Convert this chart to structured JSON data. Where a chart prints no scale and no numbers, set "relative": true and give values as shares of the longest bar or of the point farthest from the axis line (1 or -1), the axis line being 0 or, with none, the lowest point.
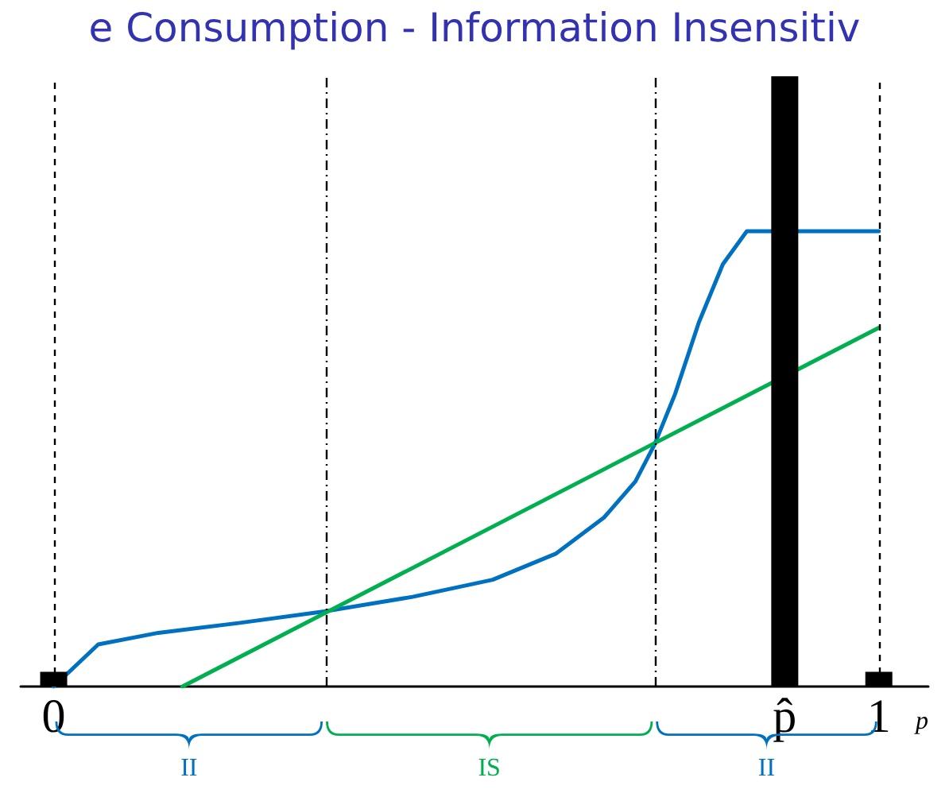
{
  "chart_data": {
    "type": "line",
    "title": "e Consumption - Information Insensitiv",
    "xlabel": "p",
    "relative": true,
    "xlim": [
      -0.04,
      1.06
    ],
    "xticks": [
      0,
      {
        "value": 0.886,
        "label": "p̂"
      },
      1
    ],
    "series": [
      {
        "color": "#0070c0",
        "x": [
          0,
          0.054,
          0.127,
          0.224,
          0.328,
          0.435,
          0.532,
          0.609,
          0.667,
          0.705,
          0.728,
          0.753,
          0.782,
          0.811,
          0.84,
          1
        ],
        "values": [
          0,
          0.069,
          0.088,
          0.104,
          0.123,
          0.147,
          0.175,
          0.218,
          0.277,
          0.336,
          0.396,
          0.479,
          0.597,
          0.692,
          0.746,
          0.746
        ]
      },
      {
        "color": "#00b050",
        "x": [
          0.156,
          1
        ],
        "values": [
          0,
          0.588
        ]
      },
      {
        "type": "bar",
        "color": "#000000",
        "x": [
          0,
          0.886,
          1
        ],
        "values": [
          0.024,
          1,
          0.024
        ]
      }
    ],
    "ref_lines": [
      {
        "axis": "x",
        "value": 0,
        "line_style": "dashed",
        "color": "#000000"
      },
      {
        "axis": "x",
        "value": 1,
        "line_style": "dashed",
        "color": "#000000"
      },
      {
        "axis": "x",
        "value": 0.328,
        "line_style": "dotted",
        "color": "#000000"
      },
      {
        "axis": "x",
        "value": 0.728,
        "line_style": "dotted",
        "color": "#000000"
      }
    ],
    "annotations": [
      "II",
      "IS",
      "II"
    ],
    "marker": "none",
    "line_style": "solid",
    "grid": false
  }
}
